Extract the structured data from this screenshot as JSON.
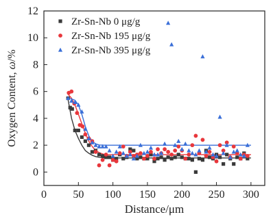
{
  "chart_data": {
    "type": "scatter",
    "xlabel": "Distance/μm",
    "ylabel_main": "Oxygen Content, ",
    "ylabel_symbol": "ω",
    "ylabel_unit": "/%",
    "xlim": [
      0,
      320
    ],
    "ylim": [
      -1,
      12
    ],
    "xticks": [
      0,
      50,
      100,
      150,
      200,
      250,
      300
    ],
    "yticks": [
      0,
      2,
      4,
      6,
      8,
      10,
      12
    ],
    "grid": false,
    "legend_position": "top-left",
    "series": [
      {
        "name": "Zr-Sn-Nb 0 μg/g",
        "color": "#3a3a3a",
        "marker": "square",
        "points": [
          [
            35,
            5.5
          ],
          [
            38,
            4.8
          ],
          [
            41,
            4.7
          ],
          [
            45,
            3.1
          ],
          [
            50,
            3.1
          ],
          [
            55,
            2.6
          ],
          [
            60,
            2.3
          ],
          [
            65,
            2.0
          ],
          [
            70,
            1.5
          ],
          [
            75,
            1.6
          ],
          [
            80,
            1.3
          ],
          [
            85,
            1.2
          ],
          [
            90,
            1.1
          ],
          [
            95,
            1.1
          ],
          [
            100,
            0.9
          ],
          [
            105,
            1.0
          ],
          [
            110,
            1.3
          ],
          [
            115,
            1.0
          ],
          [
            120,
            1.1
          ],
          [
            125,
            1.7
          ],
          [
            130,
            1.6
          ],
          [
            135,
            1.0
          ],
          [
            140,
            1.1
          ],
          [
            145,
            1.0
          ],
          [
            150,
            1.0
          ],
          [
            155,
            1.3
          ],
          [
            160,
            0.8
          ],
          [
            165,
            1.0
          ],
          [
            170,
            1.1
          ],
          [
            175,
            0.9
          ],
          [
            180,
            1.1
          ],
          [
            185,
            1.0
          ],
          [
            190,
            1.1
          ],
          [
            195,
            1.3
          ],
          [
            200,
            1.1
          ],
          [
            205,
            1.0
          ],
          [
            210,
            1.0
          ],
          [
            215,
            0.9
          ],
          [
            220,
            0.0
          ],
          [
            225,
            1.0
          ],
          [
            230,
            0.9
          ],
          [
            235,
            1.6
          ],
          [
            240,
            1.1
          ],
          [
            245,
            1.0
          ],
          [
            250,
            1.3
          ],
          [
            255,
            1.1
          ],
          [
            260,
            0.6
          ],
          [
            265,
            1.3
          ],
          [
            270,
            1.0
          ],
          [
            275,
            0.6
          ],
          [
            280,
            1.1
          ],
          [
            285,
            1.0
          ],
          [
            290,
            1.4
          ],
          [
            295,
            1.0
          ]
        ],
        "fit": [
          [
            35,
            5.4
          ],
          [
            40,
            4.0
          ],
          [
            45,
            3.1
          ],
          [
            50,
            2.5
          ],
          [
            55,
            2.0
          ],
          [
            60,
            1.6
          ],
          [
            65,
            1.4
          ],
          [
            70,
            1.25
          ],
          [
            75,
            1.15
          ],
          [
            80,
            1.1
          ],
          [
            90,
            1.05
          ],
          [
            100,
            1.05
          ],
          [
            300,
            1.05
          ]
        ]
      },
      {
        "name": "Zr-Sn-Nb 195 μg/g",
        "color": "#e8373c",
        "marker": "circle",
        "points": [
          [
            36,
            5.9
          ],
          [
            40,
            6.0
          ],
          [
            44,
            5.1
          ],
          [
            48,
            4.4
          ],
          [
            52,
            3.5
          ],
          [
            56,
            3.4
          ],
          [
            60,
            2.8
          ],
          [
            65,
            2.5
          ],
          [
            70,
            2.3
          ],
          [
            75,
            1.5
          ],
          [
            80,
            0.5
          ],
          [
            85,
            0.9
          ],
          [
            90,
            1.3
          ],
          [
            95,
            0.5
          ],
          [
            100,
            0.9
          ],
          [
            105,
            0.8
          ],
          [
            110,
            1.4
          ],
          [
            115,
            1.9
          ],
          [
            120,
            1.2
          ],
          [
            125,
            1.5
          ],
          [
            130,
            1.2
          ],
          [
            135,
            1.3
          ],
          [
            140,
            1.4
          ],
          [
            145,
            1.0
          ],
          [
            150,
            1.2
          ],
          [
            155,
            1.5
          ],
          [
            160,
            1.0
          ],
          [
            165,
            1.7
          ],
          [
            170,
            1.4
          ],
          [
            175,
            1.7
          ],
          [
            180,
            1.5
          ],
          [
            185,
            1.3
          ],
          [
            190,
            1.6
          ],
          [
            195,
            1.9
          ],
          [
            200,
            1.6
          ],
          [
            205,
            1.0
          ],
          [
            210,
            1.3
          ],
          [
            215,
            2.0
          ],
          [
            220,
            2.7
          ],
          [
            225,
            1.4
          ],
          [
            230,
            2.4
          ],
          [
            235,
            1.2
          ],
          [
            240,
            1.5
          ],
          [
            245,
            1.1
          ],
          [
            250,
            0.8
          ],
          [
            255,
            2.0
          ],
          [
            260,
            1.6
          ],
          [
            265,
            2.2
          ],
          [
            270,
            1.1
          ],
          [
            275,
            1.9
          ],
          [
            280,
            1.4
          ],
          [
            285,
            1.0
          ],
          [
            290,
            1.3
          ],
          [
            295,
            1.2
          ]
        ],
        "fit": [
          [
            35,
            5.8
          ],
          [
            40,
            5.5
          ],
          [
            45,
            5.0
          ],
          [
            50,
            4.3
          ],
          [
            55,
            3.6
          ],
          [
            60,
            2.9
          ],
          [
            65,
            2.3
          ],
          [
            70,
            1.9
          ],
          [
            75,
            1.6
          ],
          [
            80,
            1.45
          ],
          [
            85,
            1.35
          ],
          [
            90,
            1.3
          ],
          [
            100,
            1.3
          ],
          [
            300,
            1.3
          ]
        ]
      },
      {
        "name": "Zr-Sn-Nb 395 μg/g",
        "color": "#3a6fd8",
        "marker": "triangle",
        "points": [
          [
            35,
            5.5
          ],
          [
            40,
            5.3
          ],
          [
            45,
            5.2
          ],
          [
            50,
            5.0
          ],
          [
            55,
            4.5
          ],
          [
            60,
            3.2
          ],
          [
            65,
            2.5
          ],
          [
            70,
            2.2
          ],
          [
            75,
            2.0
          ],
          [
            80,
            1.9
          ],
          [
            85,
            1.9
          ],
          [
            90,
            1.9
          ],
          [
            95,
            1.6
          ],
          [
            100,
            1.2
          ],
          [
            105,
            1.5
          ],
          [
            110,
            1.9
          ],
          [
            115,
            1.4
          ],
          [
            120,
            1.2
          ],
          [
            125,
            1.3
          ],
          [
            130,
            1.0
          ],
          [
            135,
            1.2
          ],
          [
            140,
            2.0
          ],
          [
            145,
            1.4
          ],
          [
            150,
            1.5
          ],
          [
            155,
            1.8
          ],
          [
            160,
            1.3
          ],
          [
            165,
            1.3
          ],
          [
            170,
            1.4
          ],
          [
            175,
            2.1
          ],
          [
            180,
            11.1
          ],
          [
            185,
            9.5
          ],
          [
            190,
            2.0
          ],
          [
            195,
            2.3
          ],
          [
            200,
            1.7
          ],
          [
            205,
            2.1
          ],
          [
            210,
            1.6
          ],
          [
            215,
            1.4
          ],
          [
            220,
            1.3
          ],
          [
            225,
            1.6
          ],
          [
            230,
            8.6
          ],
          [
            235,
            1.5
          ],
          [
            240,
            1.8
          ],
          [
            245,
            1.3
          ],
          [
            250,
            1.2
          ],
          [
            255,
            4.1
          ],
          [
            260,
            1.4
          ],
          [
            265,
            2.0
          ],
          [
            270,
            1.1
          ],
          [
            275,
            1.5
          ],
          [
            280,
            1.6
          ],
          [
            285,
            1.3
          ],
          [
            290,
            1.2
          ],
          [
            295,
            2.0
          ]
        ],
        "fit": [
          [
            35,
            5.5
          ],
          [
            40,
            5.45
          ],
          [
            45,
            5.35
          ],
          [
            50,
            5.0
          ],
          [
            55,
            4.3
          ],
          [
            60,
            3.4
          ],
          [
            65,
            2.7
          ],
          [
            70,
            2.3
          ],
          [
            75,
            2.1
          ],
          [
            80,
            2.02
          ],
          [
            90,
            2.0
          ],
          [
            300,
            2.0
          ]
        ]
      }
    ]
  }
}
